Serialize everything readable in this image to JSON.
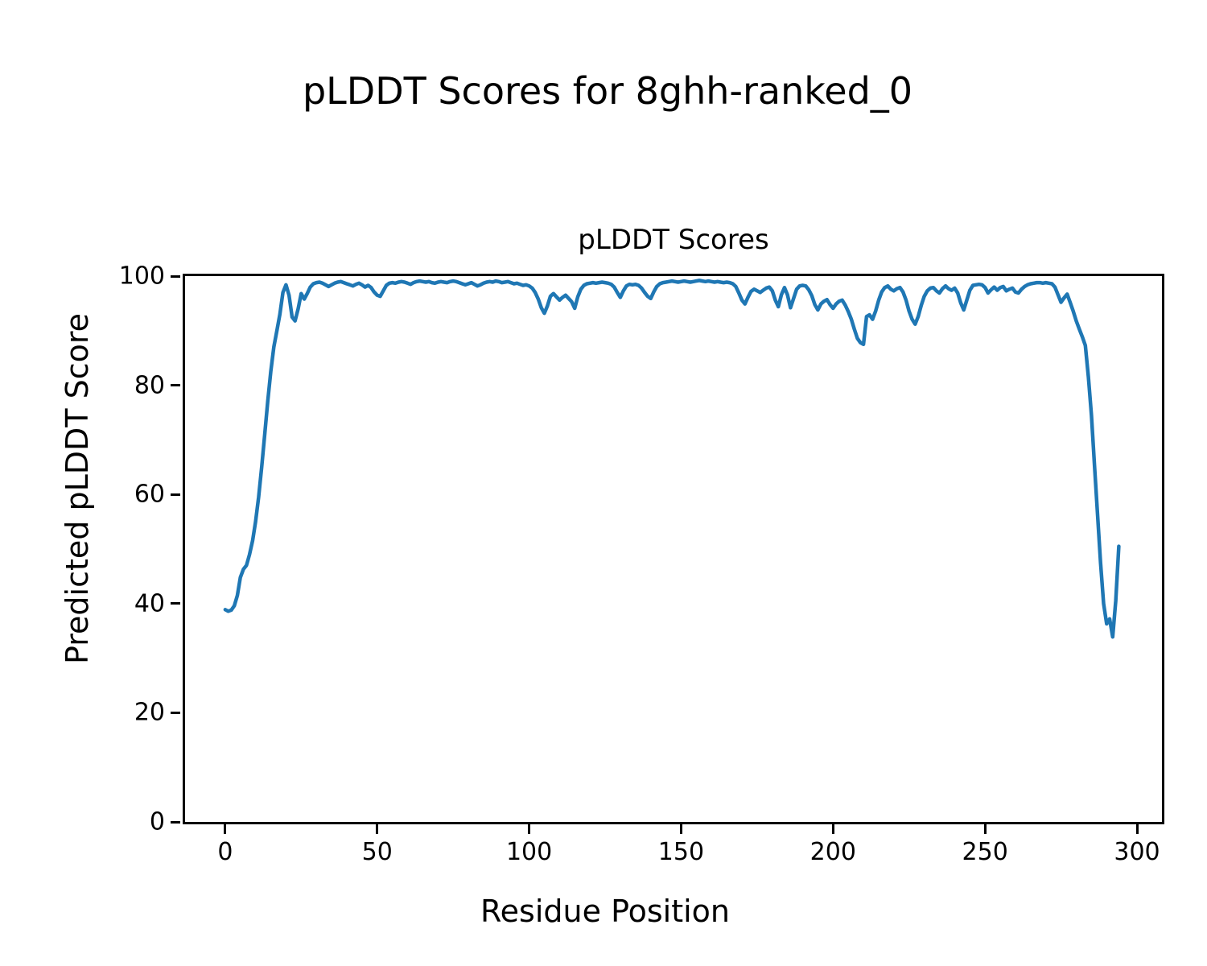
{
  "chart_data": {
    "type": "line",
    "suptitle": "pLDDT Scores for 8ghh-ranked_0",
    "title": "pLDDT Scores",
    "xlabel": "Residue Position",
    "ylabel": "Predicted pLDDT Score",
    "grid": false,
    "legend": null,
    "line_color": "#1f77b4",
    "line_width": 4.5,
    "xlim": [
      -13.2,
      308.2
    ],
    "ylim": [
      0,
      100
    ],
    "xticks": [
      0,
      50,
      100,
      150,
      200,
      250,
      300
    ],
    "yticks": [
      0,
      20,
      40,
      60,
      80,
      100
    ],
    "series": [
      {
        "name": "pLDDT",
        "x_start": 0,
        "x_step": 1,
        "values": [
          38.9,
          38.6,
          38.8,
          39.6,
          41.5,
          44.8,
          46.3,
          47.0,
          49.0,
          51.5,
          55.0,
          59.5,
          65.0,
          71.0,
          77.0,
          82.5,
          87.0,
          90.0,
          93.0,
          97.0,
          98.4,
          96.5,
          92.5,
          91.8,
          94.0,
          96.8,
          95.8,
          96.8,
          98.0,
          98.6,
          98.8,
          98.9,
          98.7,
          98.4,
          98.1,
          98.4,
          98.7,
          98.9,
          99.0,
          98.8,
          98.6,
          98.4,
          98.2,
          98.5,
          98.7,
          98.4,
          98.0,
          98.3,
          97.9,
          97.1,
          96.5,
          96.3,
          97.3,
          98.3,
          98.7,
          98.8,
          98.7,
          98.9,
          99.0,
          98.9,
          98.7,
          98.5,
          98.8,
          99.0,
          99.1,
          99.0,
          98.9,
          99.0,
          98.8,
          98.7,
          98.9,
          99.0,
          98.9,
          98.8,
          99.0,
          99.1,
          99.0,
          98.8,
          98.6,
          98.4,
          98.6,
          98.8,
          98.5,
          98.2,
          98.4,
          98.7,
          98.9,
          99.0,
          98.9,
          99.1,
          99.0,
          98.8,
          98.9,
          99.0,
          98.8,
          98.6,
          98.7,
          98.5,
          98.3,
          98.4,
          98.2,
          97.8,
          97.0,
          95.8,
          94.2,
          93.2,
          94.5,
          96.3,
          96.8,
          96.2,
          95.6,
          96.1,
          96.5,
          95.9,
          95.3,
          94.1,
          96.2,
          97.6,
          98.3,
          98.6,
          98.7,
          98.8,
          98.7,
          98.8,
          98.9,
          98.8,
          98.7,
          98.5,
          98.0,
          97.0,
          96.1,
          97.3,
          98.2,
          98.5,
          98.4,
          98.5,
          98.3,
          97.8,
          97.0,
          96.3,
          95.9,
          97.1,
          98.1,
          98.6,
          98.8,
          98.9,
          99.0,
          99.1,
          99.0,
          98.9,
          99.0,
          99.1,
          99.0,
          98.9,
          99.0,
          99.1,
          99.2,
          99.1,
          99.0,
          99.1,
          99.0,
          98.9,
          99.0,
          98.9,
          98.8,
          98.9,
          98.8,
          98.6,
          98.1,
          96.9,
          95.6,
          94.9,
          96.1,
          97.2,
          97.6,
          97.3,
          97.0,
          97.4,
          97.8,
          98.0,
          97.3,
          95.6,
          94.4,
          96.6,
          97.9,
          96.6,
          94.2,
          95.9,
          97.6,
          98.2,
          98.3,
          98.2,
          97.5,
          96.4,
          94.8,
          93.8,
          94.9,
          95.4,
          95.7,
          94.8,
          94.1,
          94.9,
          95.4,
          95.6,
          94.7,
          93.5,
          92.1,
          90.3,
          88.6,
          87.8,
          87.5,
          92.6,
          92.9,
          92.1,
          93.6,
          95.6,
          97.1,
          97.9,
          98.2,
          97.6,
          97.3,
          97.7,
          97.9,
          97.1,
          95.6,
          93.6,
          92.1,
          91.2,
          92.6,
          94.6,
          96.3,
          97.3,
          97.8,
          97.9,
          97.3,
          96.9,
          97.7,
          98.2,
          97.7,
          97.4,
          97.8,
          96.9,
          95.1,
          93.8,
          95.6,
          97.4,
          98.3,
          98.4,
          98.5,
          98.4,
          97.9,
          96.9,
          97.5,
          98.0,
          97.4,
          97.9,
          98.1,
          97.3,
          97.6,
          97.8,
          97.1,
          96.9,
          97.6,
          98.1,
          98.4,
          98.6,
          98.7,
          98.8,
          98.8,
          98.7,
          98.8,
          98.7,
          98.6,
          98.0,
          96.6,
          95.2,
          96.0,
          96.7,
          95.2,
          93.6,
          91.8,
          90.3,
          88.9,
          87.3,
          81.5,
          74.5,
          65.5,
          56.5,
          47.5,
          40.0,
          36.3,
          37.2,
          33.9,
          40.5,
          50.5
        ]
      }
    ]
  }
}
